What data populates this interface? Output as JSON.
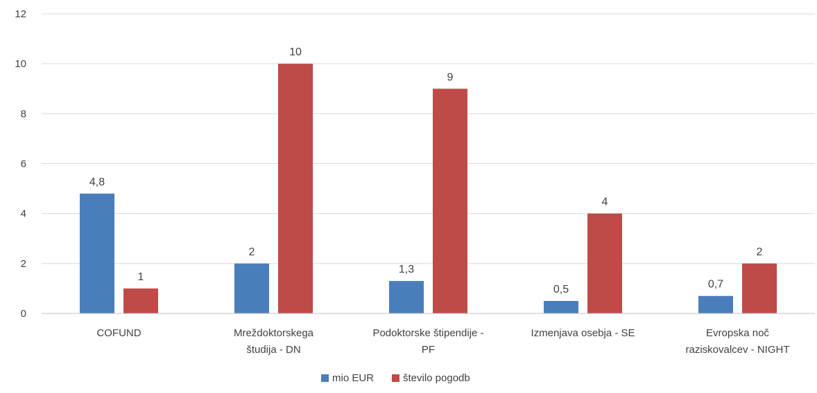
{
  "chart_data": {
    "type": "bar",
    "categories": [
      [
        "COFUND"
      ],
      [
        "Mreždoktorskega",
        "študija - DN"
      ],
      [
        "Podoktorske štipendije -",
        "PF"
      ],
      [
        "Izmenjava osebja - SE"
      ],
      [
        "Evropska noč",
        "raziskovalcev - NIGHT"
      ]
    ],
    "series": [
      {
        "name": "mio EUR",
        "color": "#4a7ebb",
        "values": [
          4.8,
          2,
          1.3,
          0.5,
          0.7
        ],
        "labels": [
          "4,8",
          "2",
          "1,3",
          "0,5",
          "0,7"
        ]
      },
      {
        "name": "število pogodb",
        "color": "#be4b48",
        "values": [
          1,
          10,
          9,
          4,
          2
        ],
        "labels": [
          "1",
          "10",
          "9",
          "4",
          "2"
        ]
      }
    ],
    "ylim": [
      0,
      12
    ],
    "yticks": [
      0,
      2,
      4,
      6,
      8,
      10,
      12
    ],
    "grid": true,
    "legend": "bottom",
    "title": "",
    "xlabel": "",
    "ylabel": ""
  }
}
